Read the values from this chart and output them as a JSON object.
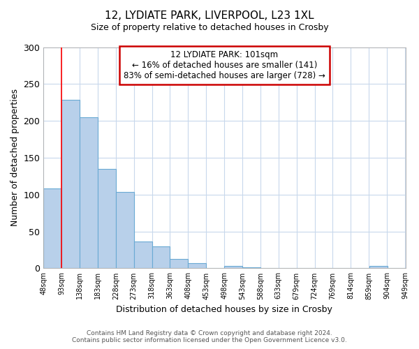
{
  "title1": "12, LYDIATE PARK, LIVERPOOL, L23 1XL",
  "title2": "Size of property relative to detached houses in Crosby",
  "xlabel": "Distribution of detached houses by size in Crosby",
  "ylabel": "Number of detached properties",
  "bar_left_edges": [
    48,
    93,
    138,
    183,
    228,
    273,
    318,
    363,
    408,
    453,
    498,
    543,
    588,
    633,
    679,
    724,
    769,
    814,
    859,
    904
  ],
  "bar_heights": [
    108,
    229,
    205,
    135,
    104,
    36,
    30,
    13,
    7,
    0,
    3,
    1,
    0,
    0,
    0,
    0,
    0,
    0,
    3,
    0
  ],
  "bin_width": 45,
  "bar_color": "#b8d0ea",
  "bar_edge_color": "#6aaad4",
  "red_line_x": 93,
  "ylim": [
    0,
    300
  ],
  "yticks": [
    0,
    50,
    100,
    150,
    200,
    250,
    300
  ],
  "xtick_labels": [
    "48sqm",
    "93sqm",
    "138sqm",
    "183sqm",
    "228sqm",
    "273sqm",
    "318sqm",
    "363sqm",
    "408sqm",
    "453sqm",
    "498sqm",
    "543sqm",
    "588sqm",
    "633sqm",
    "679sqm",
    "724sqm",
    "769sqm",
    "814sqm",
    "859sqm",
    "904sqm",
    "949sqm"
  ],
  "annotation_title": "12 LYDIATE PARK: 101sqm",
  "annotation_line1": "← 16% of detached houses are smaller (141)",
  "annotation_line2": "83% of semi-detached houses are larger (728) →",
  "annotation_box_color": "#ffffff",
  "annotation_box_edge_color": "#cc0000",
  "footer1": "Contains HM Land Registry data © Crown copyright and database right 2024.",
  "footer2": "Contains public sector information licensed under the Open Government Licence v3.0.",
  "background_color": "#ffffff",
  "grid_color": "#c8d8ec"
}
